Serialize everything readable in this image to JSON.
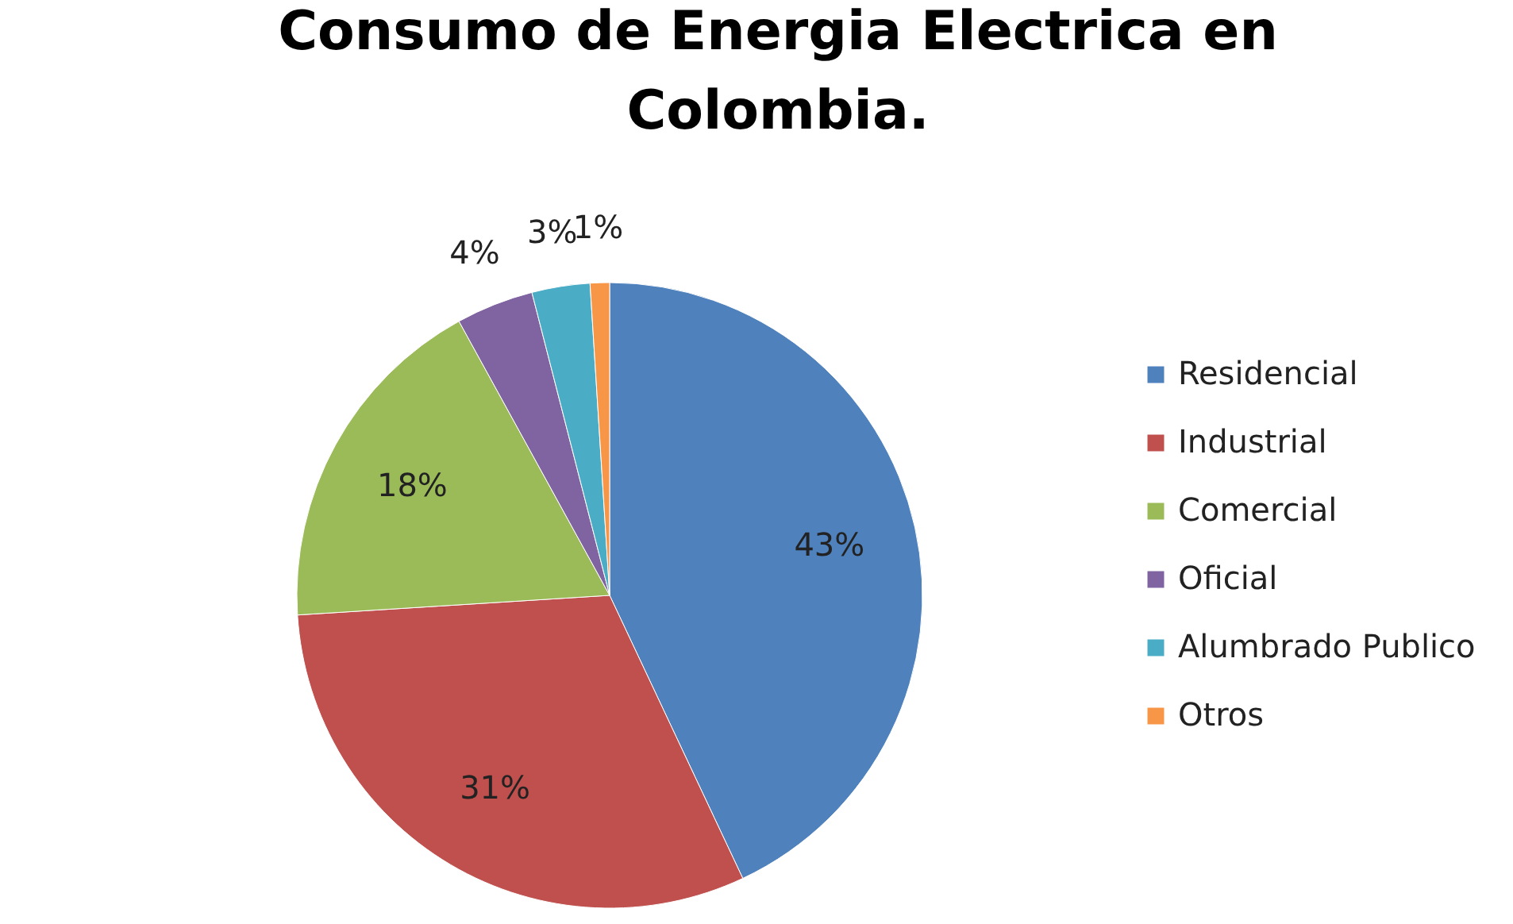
{
  "chart_data": {
    "type": "pie",
    "title": "Consumo de Energia Electrica en Colombia.",
    "categories": [
      "Residencial",
      "Industrial",
      "Comercial",
      "Oficial",
      "Alumbrado Publico",
      "Otros"
    ],
    "values": [
      43,
      31,
      18,
      4,
      3,
      1
    ],
    "colors": [
      "#4f81bd",
      "#c0504d",
      "#9bbb59",
      "#8064a2",
      "#4bacc6",
      "#f79646"
    ],
    "value_labels": [
      "43%",
      "31%",
      "18%",
      "4%",
      "3%",
      "1%"
    ],
    "legend": "right"
  }
}
